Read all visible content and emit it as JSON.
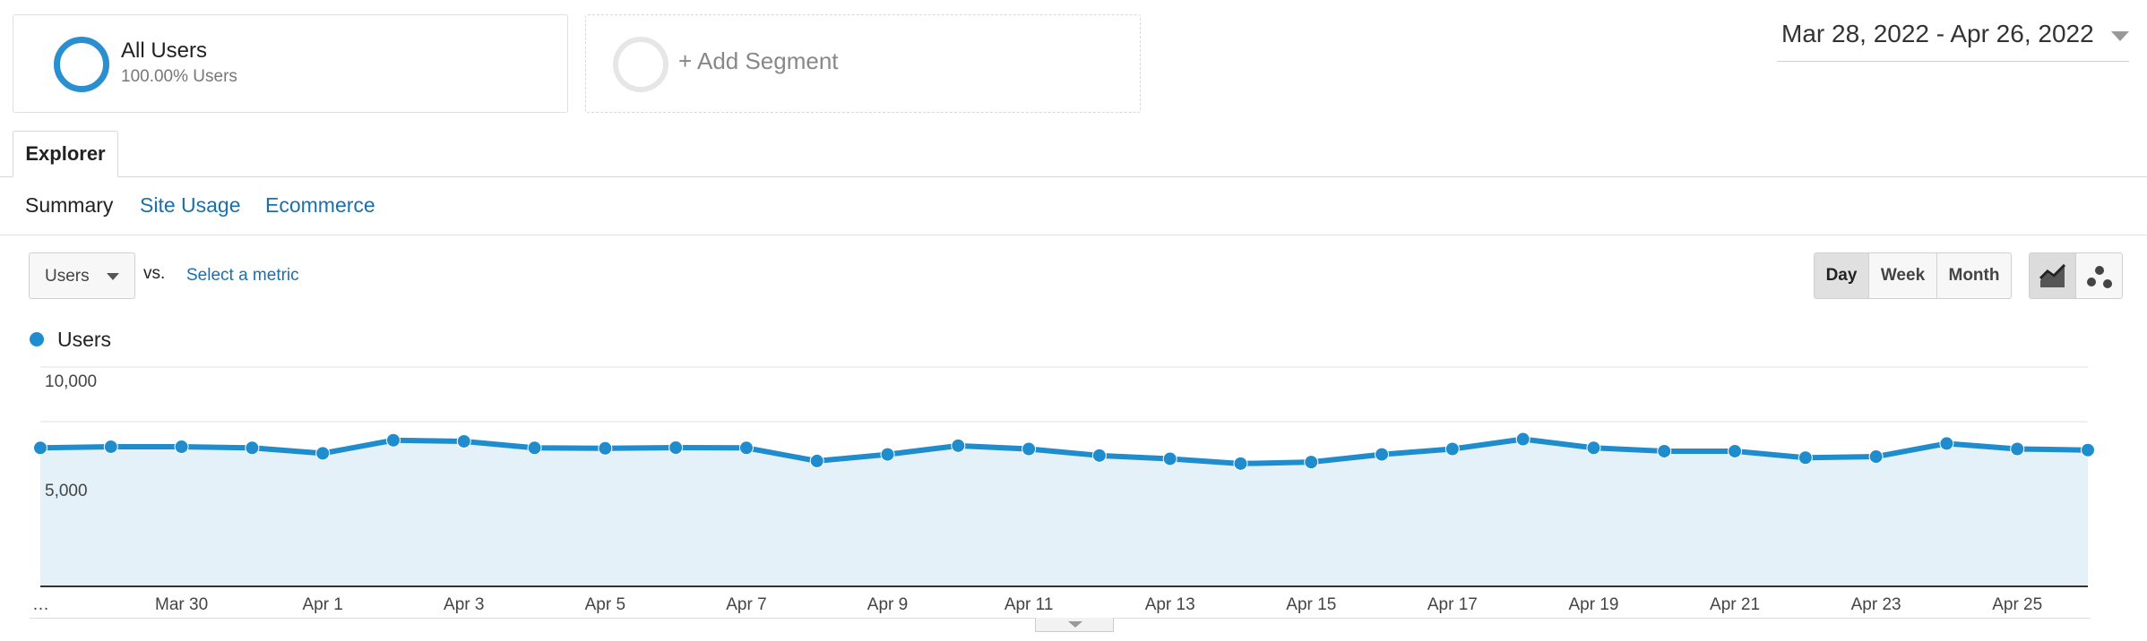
{
  "segments": [
    {
      "title": "All Users",
      "subtitle": "100.00% Users"
    },
    {
      "title": "+ Add Segment"
    }
  ],
  "date_range": "Mar 28, 2022 - Apr 26, 2022",
  "tabs": {
    "explorer": "Explorer"
  },
  "subtabs": [
    "Summary",
    "Site Usage",
    "Ecommerce"
  ],
  "metric": {
    "selected": "Users",
    "vs": "vs.",
    "select_label": "Select a metric"
  },
  "granularity": [
    "Day",
    "Week",
    "Month"
  ],
  "granularity_selected": "Day",
  "chart_type_buttons": [
    "motion-chart-icon"
  ],
  "colors": {
    "series": "#1f8dcd",
    "area": "#e4f1f8",
    "link": "#1a6fb0"
  },
  "chart_data": {
    "type": "area",
    "legend": [
      "Users"
    ],
    "yticks": [
      "10,000",
      "5,000"
    ],
    "ylim": [
      0,
      10000
    ],
    "x": [
      "Mar 28",
      "Mar 29",
      "Mar 30",
      "Mar 31",
      "Apr 1",
      "Apr 2",
      "Apr 3",
      "Apr 4",
      "Apr 5",
      "Apr 6",
      "Apr 7",
      "Apr 8",
      "Apr 9",
      "Apr 10",
      "Apr 11",
      "Apr 12",
      "Apr 13",
      "Apr 14",
      "Apr 15",
      "Apr 16",
      "Apr 17",
      "Apr 18",
      "Apr 19",
      "Apr 20",
      "Apr 21",
      "Apr 22",
      "Apr 23",
      "Apr 24",
      "Apr 25",
      "Apr 26"
    ],
    "xtick_labels": [
      "…",
      "Mar 30",
      "Apr 1",
      "Apr 3",
      "Apr 5",
      "Apr 7",
      "Apr 9",
      "Apr 11",
      "Apr 13",
      "Apr 15",
      "Apr 17",
      "Apr 19",
      "Apr 21",
      "Apr 23",
      "Apr 25"
    ],
    "xtick_index": [
      0,
      2,
      4,
      6,
      8,
      10,
      12,
      14,
      16,
      18,
      20,
      22,
      24,
      26,
      28
    ],
    "series": [
      {
        "name": "Users",
        "values": [
          6300,
          6350,
          6350,
          6300,
          6050,
          6650,
          6600,
          6300,
          6280,
          6310,
          6300,
          5700,
          6000,
          6400,
          6250,
          5950,
          5800,
          5580,
          5650,
          6000,
          6250,
          6700,
          6300,
          6150,
          6150,
          5850,
          5900,
          6500,
          6250,
          6200
        ]
      }
    ]
  }
}
